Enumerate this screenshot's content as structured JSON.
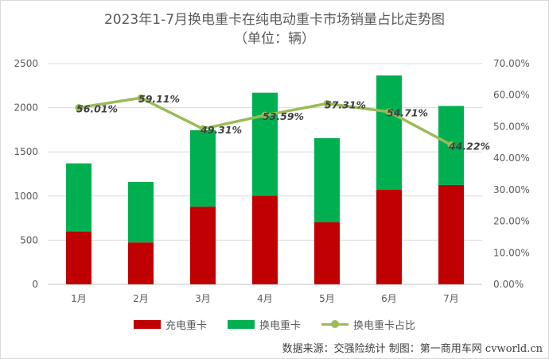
{
  "chart_data": {
    "type": "bar",
    "title": "2023年1-7月换电重卡在纯电动重卡市场销量占比走势图",
    "subtitle": "（单位：辆）",
    "categories": [
      "1月",
      "2月",
      "3月",
      "4月",
      "5月",
      "6月",
      "7月"
    ],
    "series": [
      {
        "name": "充电重卡",
        "kind": "stacked-bar",
        "axis": "left",
        "color": "#c00000",
        "values": [
          600,
          475,
          880,
          1005,
          705,
          1070,
          1125
        ]
      },
      {
        "name": "换电重卡",
        "kind": "stacked-bar",
        "axis": "left",
        "color": "#00b050",
        "values": [
          770,
          685,
          865,
          1165,
          950,
          1295,
          895
        ]
      },
      {
        "name": "换电重卡占比",
        "kind": "line",
        "axis": "right",
        "color": "#9bbb59",
        "values": [
          56.01,
          59.11,
          49.31,
          53.59,
          57.31,
          54.71,
          44.22
        ],
        "labels": [
          "56.01%",
          "59.11%",
          "49.31%",
          "53.59%",
          "57.31%",
          "54.71%",
          "44.22%"
        ]
      }
    ],
    "ylim": [
      0,
      2500
    ],
    "yticks": [
      "0",
      "500",
      "1000",
      "1500",
      "2000",
      "2500"
    ],
    "y2lim": [
      0,
      70
    ],
    "y2ticks": [
      "0.00%",
      "10.00%",
      "20.00%",
      "30.00%",
      "40.00%",
      "50.00%",
      "60.00%",
      "70.00%"
    ],
    "grid": true,
    "legend": "bottom"
  },
  "source_note": "数据来源：交强险统计  制图：第一商用车网 cvworld.cn"
}
